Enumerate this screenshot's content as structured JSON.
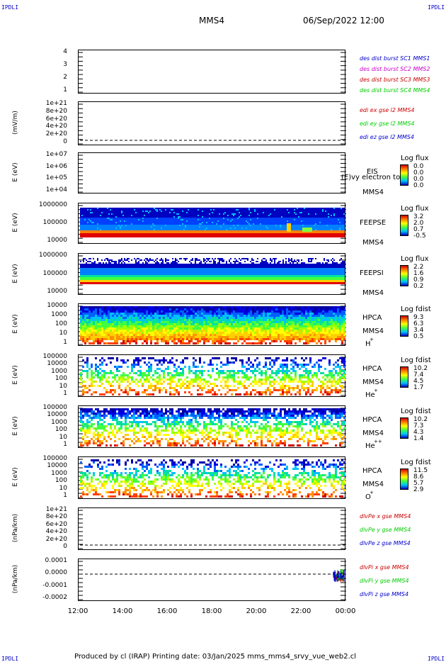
{
  "header": {
    "corner_left": "IPDLI",
    "corner_right": "IPDLI",
    "spacecraft": "MMS4",
    "date": "06/Sep/2022 12:00"
  },
  "footer": {
    "corner_left": "IPDLI",
    "corner_right": "IPDLI",
    "text": "Produced by cl (IRAP)   Printing date: 03/Jan/2025   mms_mms4_srvy_vue_web2.cl"
  },
  "colors": {
    "blue": "#0000cc",
    "magenta": "#cc00cc",
    "red": "#cc0000",
    "green": "#00cc00"
  },
  "chart_data": [
    {
      "type": "line",
      "panel": "des dist burst",
      "ylabel": "",
      "yticks": [
        "4",
        "3",
        "2",
        "1"
      ],
      "ylim": [
        0.5,
        4.5
      ],
      "legend": [
        {
          "name": "des dist burst SC1 MMS1",
          "color": "#0000cc"
        },
        {
          "name": "des dist burst SC2 MMS2",
          "color": "#cc00cc"
        },
        {
          "name": "des dist burst SC3 MMS3",
          "color": "#cc0000"
        },
        {
          "name": "des dist burst SC4 MMS4",
          "color": "#00cc00"
        }
      ]
    },
    {
      "type": "line",
      "panel": "edi",
      "ylabel": "(mV/m)",
      "yticks": [
        "1e+21",
        "8e+20",
        "6e+20",
        "4e+20",
        "2e+20",
        "0"
      ],
      "legend": [
        {
          "name": "edi ex gse l2 MMS4",
          "color": "#cc0000"
        },
        {
          "name": "edi ey gse l2 MMS4",
          "color": "#00cc00"
        },
        {
          "name": "edi ez gse l2 MMS4",
          "color": "#0000cc"
        }
      ]
    },
    {
      "type": "heatmap",
      "panel": "EIS",
      "ylabel": "E (eV)",
      "yticks": [
        "1e+07",
        "1e+06",
        "1e+05",
        "1e+04"
      ],
      "side_labels": [
        "EIS",
        "MMS4"
      ],
      "overlay_text": "(E)vy electron to",
      "cbar_title": "Log flux",
      "cbar_values": [
        "0.0",
        "0.0",
        "0.0",
        "0.0"
      ]
    },
    {
      "type": "heatmap",
      "panel": "FEEPSE",
      "ylabel": "E (eV)",
      "yticks": [
        "1000000",
        "100000",
        "10000"
      ],
      "side_labels": [
        "FEEPSE",
        "MMS4"
      ],
      "cbar_title": "Log flux",
      "cbar_values": [
        "3.2",
        "2.0",
        "0.7",
        "-0.5"
      ]
    },
    {
      "type": "heatmap",
      "panel": "FEEPSI",
      "ylabel": "E (eV)",
      "yticks": [
        "1000000",
        "100000",
        "10000"
      ],
      "side_labels": [
        "FEEPSI",
        "MMS4"
      ],
      "cbar_title": "Log flux",
      "cbar_values": [
        "2.2",
        "1.6",
        "0.9",
        "0.2"
      ]
    },
    {
      "type": "heatmap",
      "panel": "HPCA H+",
      "ylabel": "E (eV)",
      "yticks": [
        "10000",
        "1000",
        "100",
        "10",
        "1"
      ],
      "side_labels": [
        "HPCA",
        "MMS4",
        "H",
        "+"
      ],
      "cbar_title": "Log fdist",
      "cbar_values": [
        "9.3",
        "6.3",
        "3.4",
        "0.5"
      ]
    },
    {
      "type": "heatmap",
      "panel": "HPCA He+",
      "ylabel": "E (eV)",
      "yticks": [
        "100000",
        "10000",
        "1000",
        "100",
        "10",
        "1"
      ],
      "side_labels": [
        "HPCA",
        "MMS4",
        "He",
        "+"
      ],
      "cbar_title": "Log fdist",
      "cbar_values": [
        "10.2",
        "7.4",
        "4.5",
        "1.7"
      ]
    },
    {
      "type": "heatmap",
      "panel": "HPCA He++",
      "ylabel": "E (eV)",
      "yticks": [
        "100000",
        "10000",
        "1000",
        "100",
        "10",
        "1"
      ],
      "side_labels": [
        "HPCA",
        "MMS4",
        "He",
        "++"
      ],
      "cbar_title": "Log fdist",
      "cbar_values": [
        "10.2",
        "7.3",
        "4.3",
        "1.4"
      ]
    },
    {
      "type": "heatmap",
      "panel": "HPCA O+",
      "ylabel": "E (eV)",
      "yticks": [
        "100000",
        "10000",
        "1000",
        "100",
        "10",
        "1"
      ],
      "side_labels": [
        "HPCA",
        "MMS4",
        "O",
        "+"
      ],
      "cbar_title": "Log fdist",
      "cbar_values": [
        "11.5",
        "8.6",
        "5.7",
        "2.9"
      ]
    },
    {
      "type": "line",
      "panel": "dlvPe",
      "ylabel": "(nPa/km)",
      "yticks": [
        "1e+21",
        "8e+20",
        "6e+20",
        "4e+20",
        "2e+20",
        "0"
      ],
      "legend": [
        {
          "name": "dlvPe x gse MMS4",
          "color": "#cc0000"
        },
        {
          "name": "dlvPe y gse MMS4",
          "color": "#00cc00"
        },
        {
          "name": "dlvPe z gse MMS4",
          "color": "#0000cc"
        }
      ]
    },
    {
      "type": "line",
      "panel": "dlvPi",
      "ylabel": "(nPa/km)",
      "yticks": [
        "0.0001",
        "0.0000",
        "-0.0001",
        "-0.0002"
      ],
      "legend": [
        {
          "name": "dlvPi x gse MMS4",
          "color": "#cc0000"
        },
        {
          "name": "dlvPi y gse MMS4",
          "color": "#00cc00"
        },
        {
          "name": "dlvPi z gse MMS4",
          "color": "#0000cc"
        }
      ]
    }
  ],
  "x_axis": {
    "ticks": [
      "12:00",
      "14:00",
      "16:00",
      "18:00",
      "20:00",
      "22:00",
      "00:00"
    ]
  }
}
